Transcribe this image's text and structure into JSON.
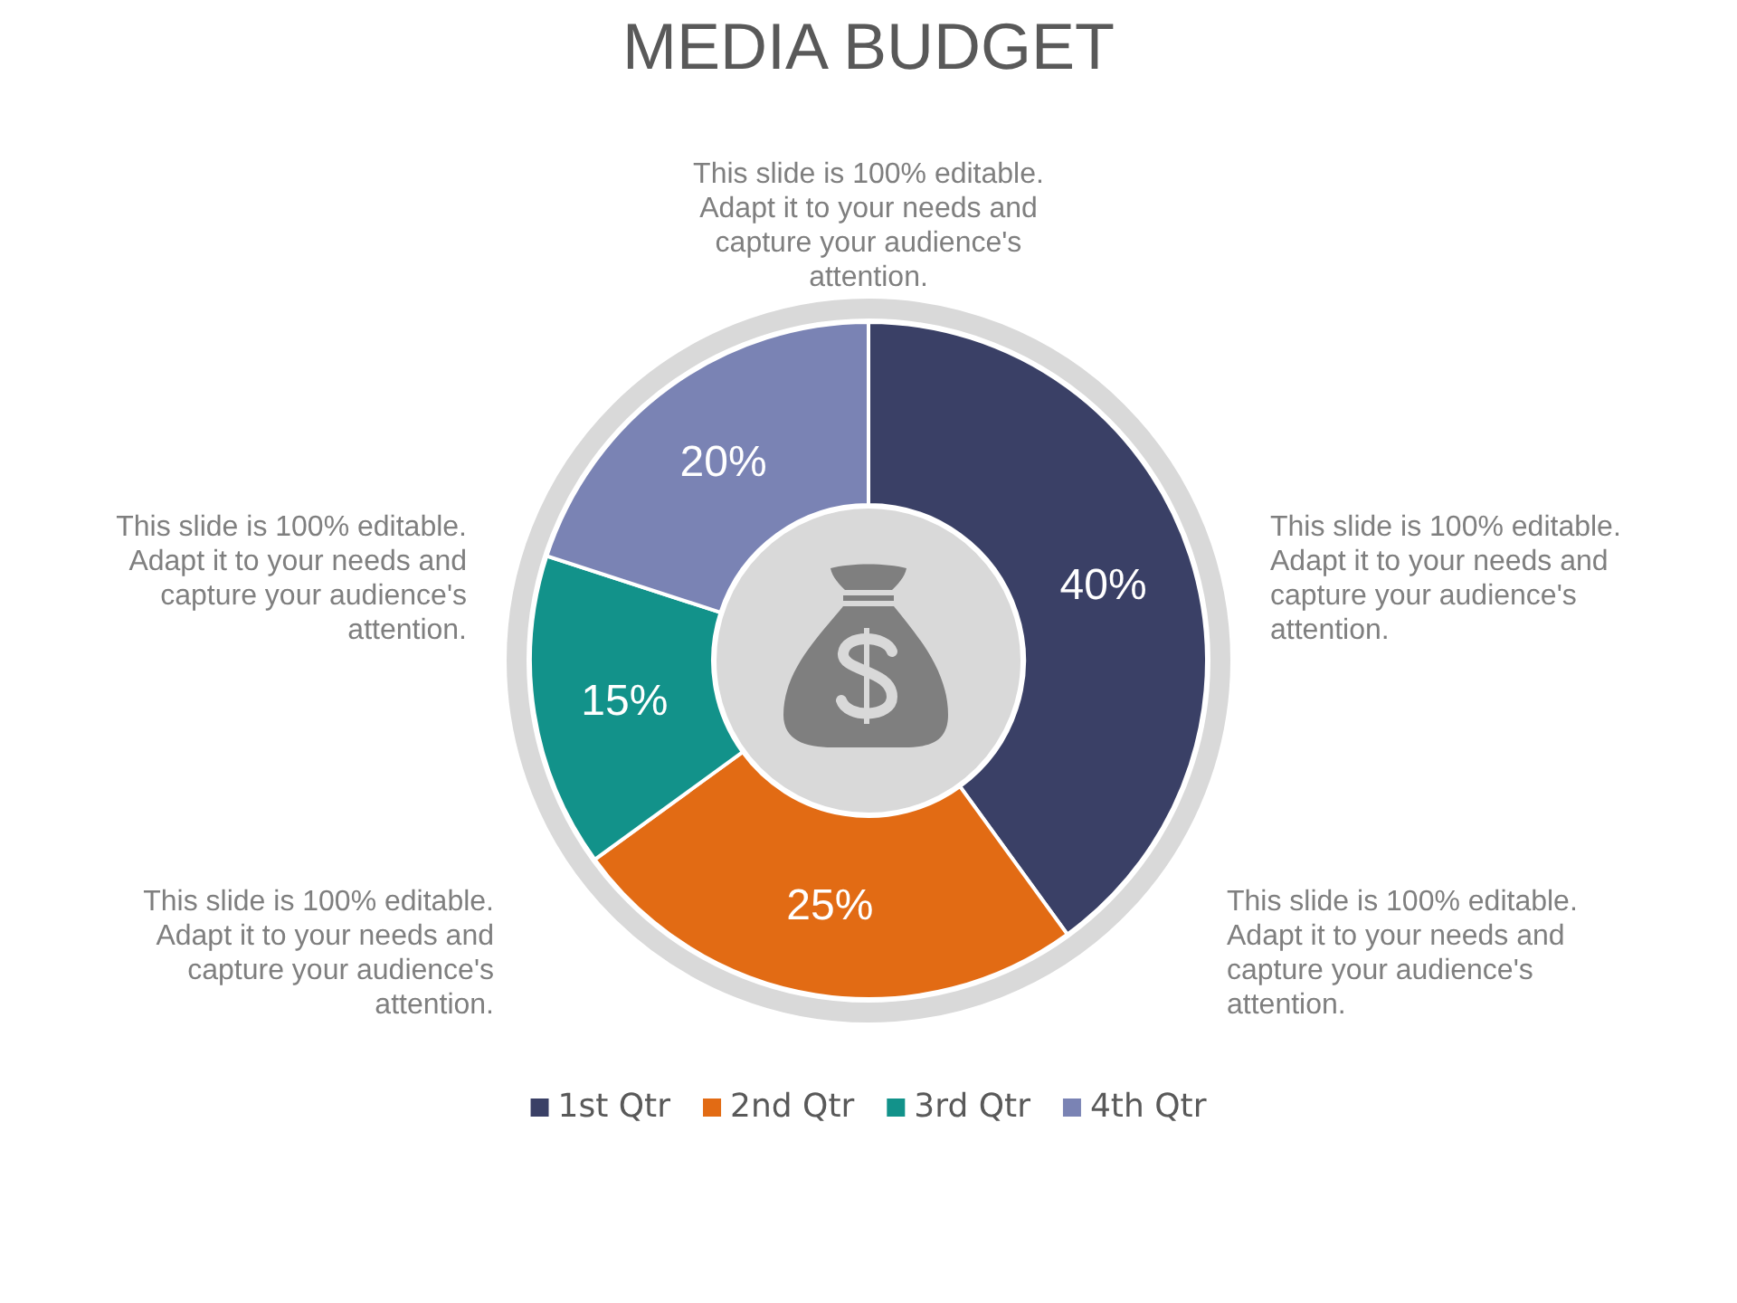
{
  "chart_data": {
    "type": "donut",
    "title": "MEDIA BUDGET",
    "categories": [
      "1st Qtr",
      "2nd Qtr",
      "3rd Qtr",
      "4th Qtr"
    ],
    "values": [
      40,
      25,
      15,
      20
    ],
    "colors": [
      "#3a4066",
      "#e26b14",
      "#12928a",
      "#7a83b4"
    ],
    "value_labels": [
      "40%",
      "25%",
      "15%",
      "20%"
    ],
    "legend": "bottom",
    "annotations": [
      "This slide is 100% editable. Adapt it to your needs and capture your audience's attention.",
      "This slide is 100% editable. Adapt it to your needs and capture your audience's attention.",
      "This slide is 100% editable. Adapt it to your needs and capture your audience's attention.",
      "This slide is 100% editable. Adapt it to your needs and capture your audience's attention.",
      "This slide is 100% editable. Adapt it to your needs and capture your audience's attention."
    ]
  }
}
